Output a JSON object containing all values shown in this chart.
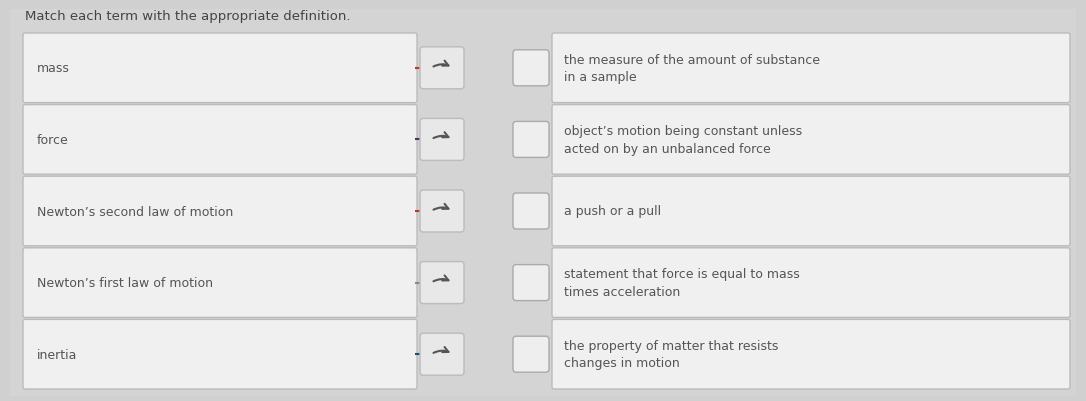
{
  "title": "Match each term with the appropriate definition.",
  "title_fontsize": 9.5,
  "title_color": "#444444",
  "background_color": "#d0d0d0",
  "outer_panel_color": "#d8d8d8",
  "terms": [
    "mass",
    "force",
    "Newton’s second law of motion",
    "Newton’s first law of motion",
    "inertia"
  ],
  "definitions": [
    "the measure of the amount of substance\nin a sample",
    "object’s motion being constant unless\nacted on by an unbalanced force",
    "a push or a pull",
    "statement that force is equal to mass\ntimes acceleration",
    "the property of matter that resists\nchanges in motion"
  ],
  "term_box_color": "#f0f0f0",
  "term_box_edge": "#bbbbbb",
  "def_box_color": "#f0f0f0",
  "def_box_edge": "#bbbbbb",
  "arrow_btn_color": "#e8e8e8",
  "arrow_btn_edge": "#bbbbbb",
  "checkbox_color": "#eeeeee",
  "checkbox_edge": "#aaaaaa",
  "arrow_line_colors": [
    "#c0392b",
    "#5b2c6f",
    "#c0392b",
    "#808b96",
    "#1a5276"
  ],
  "text_color": "#555555",
  "font_size": 9.0,
  "figwidth": 10.86,
  "figheight": 4.02,
  "dpi": 100
}
